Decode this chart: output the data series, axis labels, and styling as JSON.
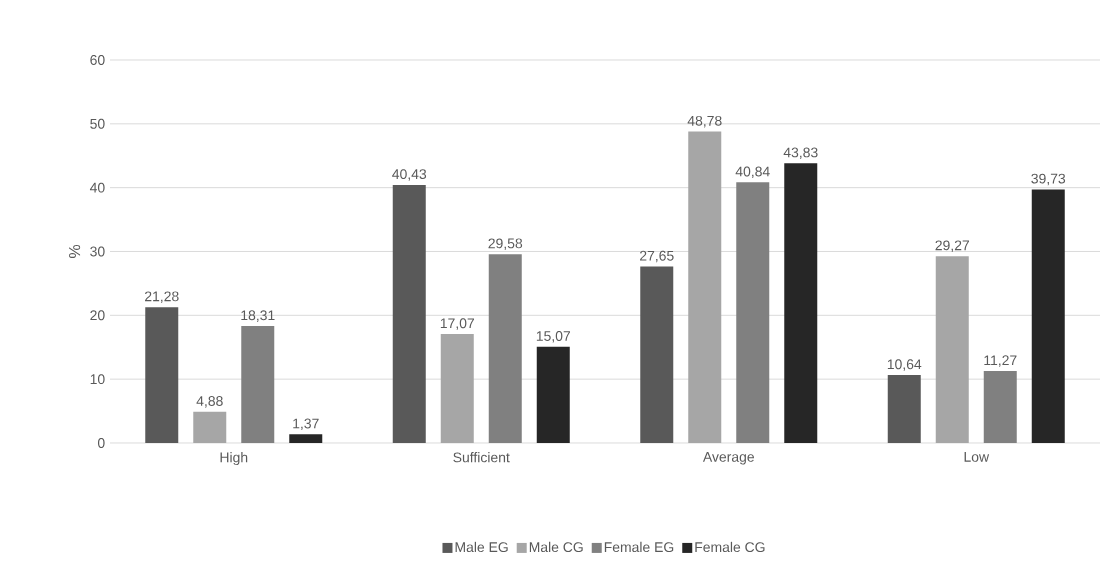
{
  "chart_data": {
    "type": "bar",
    "ylabel": "%",
    "categories": [
      "High",
      "Sufficient",
      "Average",
      "Low"
    ],
    "series": [
      {
        "name": "Male EG",
        "color": "#595959",
        "values": [
          21.28,
          40.43,
          27.65,
          10.64
        ],
        "value_labels": [
          "21,28",
          "40,43",
          "27,65",
          "10,64"
        ]
      },
      {
        "name": "Male CG",
        "color": "#a6a6a6",
        "values": [
          4.88,
          17.07,
          48.78,
          29.27
        ],
        "value_labels": [
          "4,88",
          "17,07",
          "48,78",
          "29,27"
        ]
      },
      {
        "name": "Female EG",
        "color": "#808080",
        "values": [
          18.31,
          29.58,
          40.84,
          11.27
        ],
        "value_labels": [
          "18,31",
          "29,58",
          "40,84",
          "11,27"
        ]
      },
      {
        "name": "Female CG",
        "color": "#262626",
        "values": [
          1.37,
          15.07,
          43.83,
          39.73
        ],
        "value_labels": [
          "1,37",
          "15,07",
          "43,83",
          "39,73"
        ]
      }
    ],
    "ylim": [
      0,
      60
    ],
    "yticks": [
      0,
      10,
      20,
      30,
      40,
      50,
      60
    ],
    "grid": "y",
    "legend": "bottom"
  }
}
